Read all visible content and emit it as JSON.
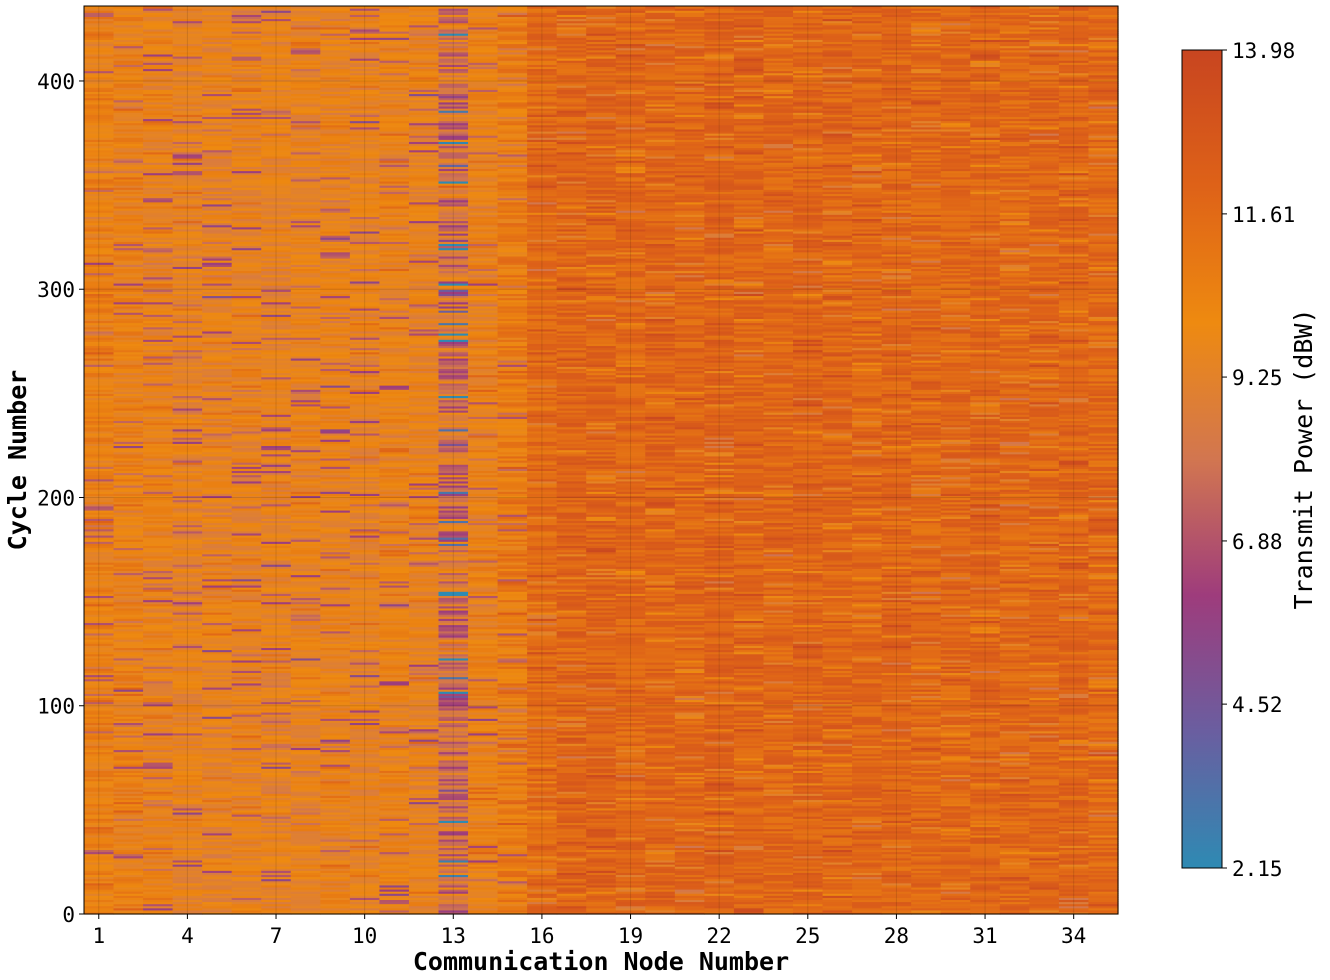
{
  "chart_data": {
    "type": "heatmap",
    "title": "",
    "xlabel": "Communication Node Number",
    "ylabel": "Cycle Number",
    "x_ticks": [
      "1",
      "4",
      "7",
      "10",
      "13",
      "16",
      "19",
      "22",
      "25",
      "28",
      "31",
      "34"
    ],
    "y_ticks": [
      "0",
      "100",
      "200",
      "300",
      "400"
    ],
    "xlim": [
      0.5,
      35.5
    ],
    "ylim": [
      0,
      436
    ],
    "nodes": [
      1,
      2,
      3,
      4,
      5,
      6,
      7,
      8,
      9,
      10,
      11,
      12,
      13,
      14,
      15,
      16,
      17,
      18,
      19,
      20,
      21,
      22,
      23,
      24,
      25,
      26,
      27,
      28,
      29,
      30,
      31,
      32,
      33,
      34,
      35
    ],
    "cycles": {
      "start": 0,
      "end": 435
    },
    "node_mean_power_dbw": [
      10.2,
      10.1,
      9.8,
      9.6,
      9.5,
      9.7,
      9.6,
      9.7,
      9.8,
      9.6,
      9.9,
      9.7,
      8.0,
      10.0,
      10.6,
      11.6,
      11.9,
      12.0,
      11.8,
      11.9,
      11.8,
      12.0,
      11.9,
      11.8,
      11.9,
      11.9,
      11.8,
      11.8,
      11.7,
      11.8,
      11.9,
      11.7,
      11.8,
      11.9,
      11.7
    ],
    "grid": true,
    "colorbar": {
      "label": "Transmit Power (dBW)",
      "min": 2.15,
      "max": 13.98,
      "ticks": [
        "2.15",
        "4.52",
        "6.88",
        "9.25",
        "11.61",
        "13.98"
      ],
      "position": "right",
      "colors": [
        "#2e8ab3",
        "#6a5ea0",
        "#9e3c7c",
        "#d27650",
        "#ee8a10",
        "#de6218",
        "#c84520"
      ]
    }
  }
}
